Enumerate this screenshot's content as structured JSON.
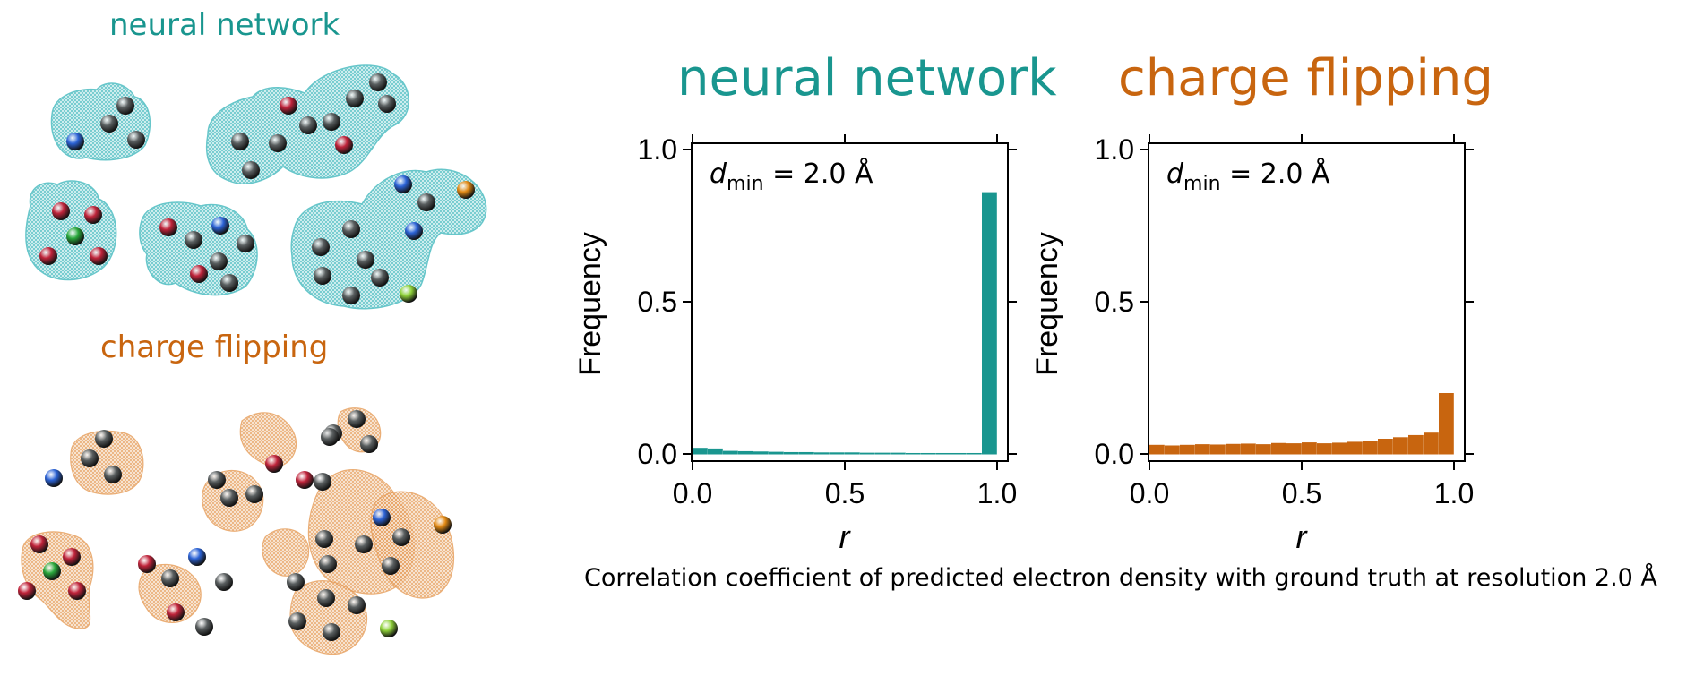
{
  "colors": {
    "neural_network": "#19968f",
    "charge_flipping": "#c8650f",
    "density_nn": "#5fc4c8",
    "density_cf": "#e59a55",
    "atom_grey": "#5a5f60",
    "atom_red": "#c0243b",
    "atom_blue": "#2c63d6",
    "atom_green": "#2aa83c",
    "atom_yellowgreen": "#8fd23a",
    "atom_orange": "#e38a15"
  },
  "illustration": {
    "nn_label": "neural network",
    "cf_label": "charge flipping"
  },
  "caption": "Correlation coefficient of predicted electron density with ground truth at resolution 2.0 Å",
  "chart_data": [
    {
      "type": "bar",
      "title": "neural network",
      "annotation": "d_min = 2.0 Å",
      "annotation_main": "d",
      "annotation_sub": "min",
      "annotation_rest": " = 2.0 Å",
      "xlabel": "r",
      "ylabel": "Frequency",
      "xlim": [
        0,
        1
      ],
      "ylim": [
        0,
        1
      ],
      "xticks": [
        "0.0",
        "0.5",
        "1.0"
      ],
      "yticks": [
        "0.0",
        "0.5",
        "1.0"
      ],
      "bin_width": 0.05,
      "bins": [
        0.0,
        0.05,
        0.1,
        0.15,
        0.2,
        0.25,
        0.3,
        0.35,
        0.4,
        0.45,
        0.5,
        0.55,
        0.6,
        0.65,
        0.7,
        0.75,
        0.8,
        0.85,
        0.9,
        0.95
      ],
      "values": [
        0.02,
        0.018,
        0.01,
        0.009,
        0.008,
        0.007,
        0.006,
        0.006,
        0.005,
        0.005,
        0.005,
        0.004,
        0.004,
        0.004,
        0.003,
        0.003,
        0.003,
        0.003,
        0.003,
        0.86
      ],
      "color": "#19968f"
    },
    {
      "type": "bar",
      "title": "charge flipping",
      "annotation": "d_min = 2.0 Å",
      "annotation_main": "d",
      "annotation_sub": "min",
      "annotation_rest": " = 2.0 Å",
      "xlabel": "r",
      "ylabel": "Frequency",
      "xlim": [
        0,
        1
      ],
      "ylim": [
        0,
        1
      ],
      "xticks": [
        "0.0",
        "0.5",
        "1.0"
      ],
      "yticks": [
        "0.0",
        "0.5",
        "1.0"
      ],
      "bin_width": 0.05,
      "bins": [
        0.0,
        0.05,
        0.1,
        0.15,
        0.2,
        0.25,
        0.3,
        0.35,
        0.4,
        0.45,
        0.5,
        0.55,
        0.6,
        0.65,
        0.7,
        0.75,
        0.8,
        0.85,
        0.9,
        0.95
      ],
      "values": [
        0.03,
        0.028,
        0.03,
        0.032,
        0.031,
        0.033,
        0.034,
        0.032,
        0.036,
        0.035,
        0.038,
        0.035,
        0.037,
        0.04,
        0.042,
        0.05,
        0.055,
        0.062,
        0.07,
        0.2
      ],
      "color": "#c8650f"
    }
  ]
}
